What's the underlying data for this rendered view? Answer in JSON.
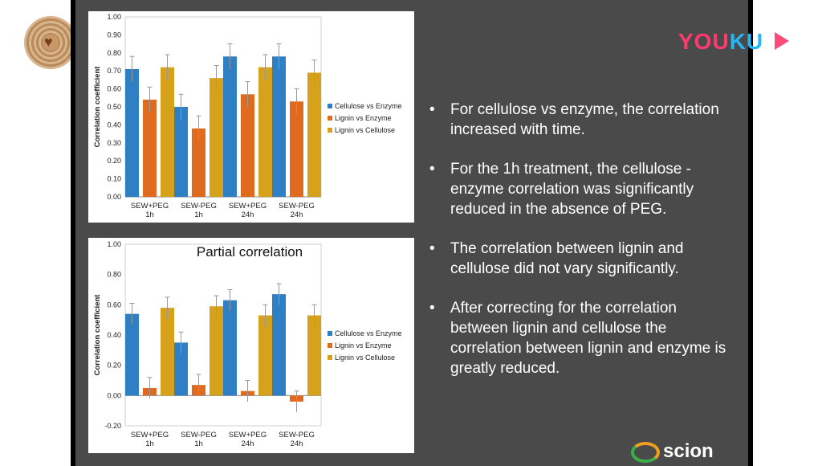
{
  "watermark": {
    "brand_part1": "YOU",
    "brand_part2": "KU"
  },
  "footer": {
    "logo_text": "scion"
  },
  "bullets": [
    "For cellulose vs enzyme, the correlation increased with time.",
    "For the 1h treatment, the cellulose - enzyme correlation was significantly reduced in the absence of PEG.",
    "The correlation between lignin and cellulose did not vary significantly.",
    "After correcting for the correlation between lignin and cellulose the correlation between lignin and enzyme is greatly reduced."
  ],
  "bullet_symbol": "•",
  "colors": {
    "cellulose_enzyme": "#2f7fc4",
    "lignin_enzyme": "#e06a1e",
    "lignin_cellulose": "#d6a21c",
    "slide_bg": "#4a4a4a"
  },
  "chart_data": [
    {
      "type": "bar",
      "title": "",
      "ylabel": "Correlation coefficient",
      "categories": [
        [
          "SEW+PEG",
          "1h"
        ],
        [
          "SEW-PEG",
          "1h"
        ],
        [
          "SEW+PEG",
          "24h"
        ],
        [
          "SEW-PEG",
          "24h"
        ]
      ],
      "ylim": [
        0,
        1
      ],
      "yticks": [
        "0.00",
        "0.10",
        "0.20",
        "0.30",
        "0.40",
        "0.50",
        "0.60",
        "0.70",
        "0.80",
        "0.90",
        "1.00"
      ],
      "legend_position": "right",
      "series": [
        {
          "name": "Cellulose vs Enzyme",
          "color": "#2f7fc4",
          "values": [
            0.71,
            0.5,
            0.78,
            0.78
          ],
          "errors": [
            0.07,
            0.07,
            0.07,
            0.07
          ]
        },
        {
          "name": "Lignin vs Enzyme",
          "color": "#e06a1e",
          "values": [
            0.54,
            0.38,
            0.57,
            0.53
          ],
          "errors": [
            0.07,
            0.07,
            0.07,
            0.07
          ]
        },
        {
          "name": "Lignin vs Cellulose",
          "color": "#d6a21c",
          "values": [
            0.72,
            0.66,
            0.72,
            0.69
          ],
          "errors": [
            0.07,
            0.07,
            0.07,
            0.07
          ]
        }
      ]
    },
    {
      "type": "bar",
      "title": "Partial correlation",
      "ylabel": "Correlation coefficient",
      "categories": [
        [
          "SEW+PEG",
          "1h"
        ],
        [
          "SEW-PEG",
          "1h"
        ],
        [
          "SEW+PEG",
          "24h"
        ],
        [
          "SEW-PEG",
          "24h"
        ]
      ],
      "ylim": [
        -0.2,
        1
      ],
      "yticks": [
        "-0.20",
        "0.00",
        "0.20",
        "0.40",
        "0.60",
        "0.80",
        "1.00"
      ],
      "legend_position": "right",
      "series": [
        {
          "name": "Cellulose vs Enzyme",
          "color": "#2f7fc4",
          "values": [
            0.54,
            0.35,
            0.63,
            0.67
          ],
          "errors": [
            0.07,
            0.07,
            0.07,
            0.07
          ]
        },
        {
          "name": "Lignin vs Enzyme",
          "color": "#e06a1e",
          "values": [
            0.05,
            0.07,
            0.03,
            -0.04
          ],
          "errors": [
            0.07,
            0.07,
            0.07,
            0.07
          ]
        },
        {
          "name": "Lignin vs Cellulose",
          "color": "#d6a21c",
          "values": [
            0.58,
            0.59,
            0.53,
            0.53
          ],
          "errors": [
            0.07,
            0.07,
            0.07,
            0.07
          ]
        }
      ]
    }
  ]
}
